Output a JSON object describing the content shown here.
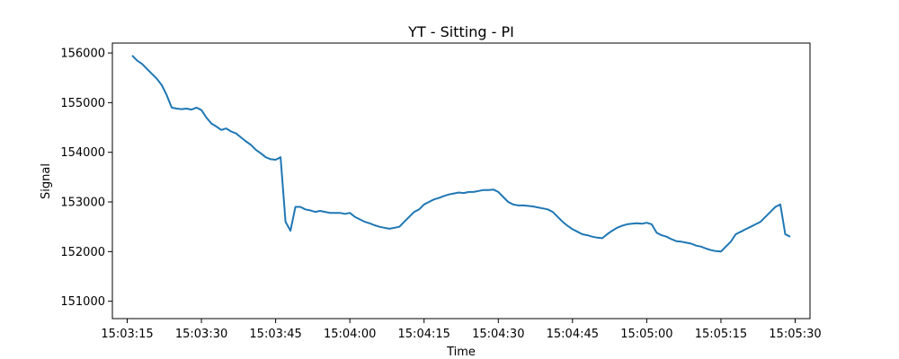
{
  "chart_data": {
    "type": "line",
    "title": "YT - Sitting - PI",
    "xlabel": "Time",
    "ylabel": "Signal",
    "x_ticks": [
      "15:03:15",
      "15:03:30",
      "15:03:45",
      "15:04:00",
      "15:04:15",
      "15:04:30",
      "15:04:45",
      "15:05:00",
      "15:05:15",
      "15:05:30"
    ],
    "y_ticks": [
      151000,
      152000,
      153000,
      154000,
      155000,
      156000
    ],
    "xlim": [
      "15:03:12",
      "15:05:33"
    ],
    "ylim": [
      150650,
      156200
    ],
    "grid": false,
    "legend": "none",
    "color": "#1f77b4",
    "series": [
      {
        "x": [
          "15:03:16",
          "15:03:17",
          "15:03:18",
          "15:03:19",
          "15:03:20",
          "15:03:21",
          "15:03:22",
          "15:03:23",
          "15:03:24",
          "15:03:25",
          "15:03:26",
          "15:03:27",
          "15:03:28",
          "15:03:29",
          "15:03:30",
          "15:03:31",
          "15:03:32",
          "15:03:33",
          "15:03:34",
          "15:03:35",
          "15:03:36",
          "15:03:37",
          "15:03:38",
          "15:03:39",
          "15:03:40",
          "15:03:41",
          "15:03:42",
          "15:03:43",
          "15:03:44",
          "15:03:45",
          "15:03:46",
          "15:03:47",
          "15:03:48",
          "15:03:49",
          "15:03:50",
          "15:03:51",
          "15:03:52",
          "15:03:53",
          "15:03:54",
          "15:03:55",
          "15:03:56",
          "15:03:57",
          "15:03:58",
          "15:03:59",
          "15:04:00",
          "15:04:01",
          "15:04:02",
          "15:04:03",
          "15:04:04",
          "15:04:05",
          "15:04:06",
          "15:04:07",
          "15:04:08",
          "15:04:09",
          "15:04:10",
          "15:04:11",
          "15:04:12",
          "15:04:13",
          "15:04:14",
          "15:04:15",
          "15:04:16",
          "15:04:17",
          "15:04:18",
          "15:04:19",
          "15:04:20",
          "15:04:21",
          "15:04:22",
          "15:04:23",
          "15:04:24",
          "15:04:25",
          "15:04:26",
          "15:04:27",
          "15:04:28",
          "15:04:29",
          "15:04:30",
          "15:04:31",
          "15:04:32",
          "15:04:33",
          "15:04:34",
          "15:04:35",
          "15:04:36",
          "15:04:37",
          "15:04:38",
          "15:04:39",
          "15:04:40",
          "15:04:41",
          "15:04:42",
          "15:04:43",
          "15:04:44",
          "15:04:45",
          "15:04:46",
          "15:04:47",
          "15:04:48",
          "15:04:49",
          "15:04:50",
          "15:04:51",
          "15:04:52",
          "15:04:53",
          "15:04:54",
          "15:04:55",
          "15:04:56",
          "15:04:57",
          "15:04:58",
          "15:04:59",
          "15:05:00",
          "15:05:01",
          "15:05:02",
          "15:05:03",
          "15:05:04",
          "15:05:05",
          "15:05:06",
          "15:05:07",
          "15:05:08",
          "15:05:09",
          "15:05:10",
          "15:05:11",
          "15:05:12",
          "15:05:13",
          "15:05:14",
          "15:05:15",
          "15:05:16",
          "15:05:17",
          "15:05:18",
          "15:05:19",
          "15:05:20",
          "15:05:21",
          "15:05:22",
          "15:05:23",
          "15:05:24",
          "15:05:25",
          "15:05:26",
          "15:05:27",
          "15:05:28",
          "15:05:29"
        ],
        "values": [
          155950,
          155850,
          155780,
          155680,
          155580,
          155480,
          155350,
          155150,
          154900,
          154880,
          154870,
          154880,
          154860,
          154900,
          154850,
          154700,
          154580,
          154520,
          154450,
          154480,
          154420,
          154380,
          154300,
          154220,
          154150,
          154050,
          153980,
          153900,
          153860,
          153850,
          153900,
          152600,
          152420,
          152900,
          152900,
          152850,
          152830,
          152800,
          152820,
          152800,
          152780,
          152780,
          152780,
          152760,
          152780,
          152700,
          152650,
          152600,
          152570,
          152530,
          152500,
          152480,
          152460,
          152480,
          152500,
          152600,
          152700,
          152800,
          152850,
          152950,
          153000,
          153050,
          153080,
          153120,
          153150,
          153170,
          153190,
          153180,
          153200,
          153200,
          153220,
          153240,
          153240,
          153250,
          153200,
          153100,
          153000,
          152950,
          152930,
          152930,
          152920,
          152910,
          152890,
          152870,
          152850,
          152800,
          152700,
          152600,
          152520,
          152450,
          152400,
          152350,
          152330,
          152300,
          152280,
          152270,
          152350,
          152420,
          152480,
          152520,
          152550,
          152560,
          152570,
          152560,
          152580,
          152550,
          152380,
          152330,
          152300,
          152250,
          152210,
          152200,
          152180,
          152160,
          152120,
          152100,
          152060,
          152030,
          152010,
          152000,
          152100,
          152200,
          152350,
          152400,
          152450,
          152500,
          152550,
          152600,
          152700,
          152800,
          152900,
          152950,
          152350,
          152300
        ]
      }
    ]
  }
}
